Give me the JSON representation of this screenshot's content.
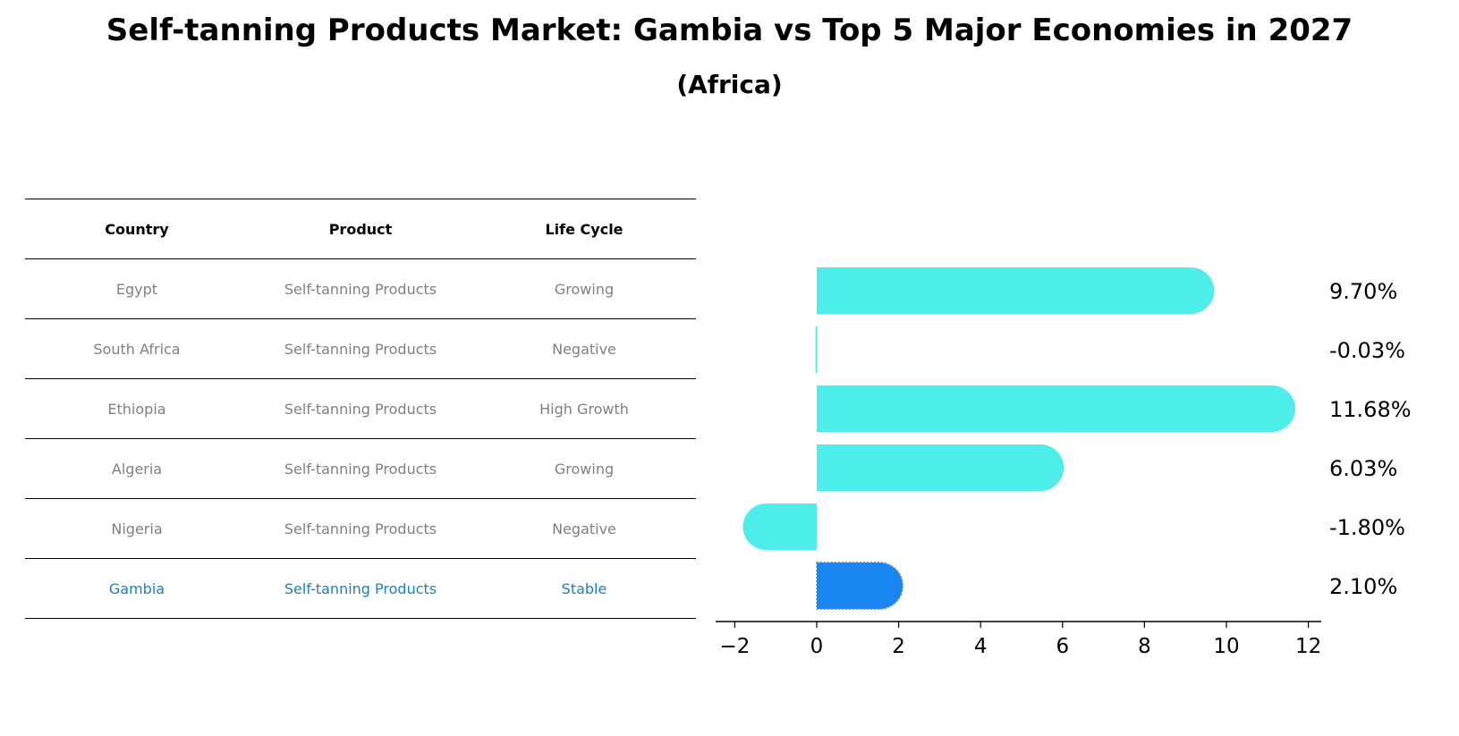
{
  "title": "Self-tanning Products Market: Gambia vs Top 5 Major Economies in 2027",
  "subtitle": "(Africa)",
  "table": {
    "headers": [
      "Country",
      "Product",
      "Life Cycle"
    ],
    "rows": [
      [
        "Egypt",
        "Self-tanning Products",
        "Growing"
      ],
      [
        "South Africa",
        "Self-tanning Products",
        "Negative"
      ],
      [
        "Ethiopia",
        "Self-tanning Products",
        "High Growth"
      ],
      [
        "Algeria",
        "Self-tanning Products",
        "Growing"
      ],
      [
        "Nigeria",
        "Self-tanning Products",
        "Negative"
      ],
      [
        "Gambia",
        "Self-tanning Products",
        "Stable"
      ]
    ]
  },
  "chart_data": {
    "type": "bar",
    "orientation": "horizontal",
    "categories": [
      "Egypt",
      "South Africa",
      "Ethiopia",
      "Algeria",
      "Nigeria",
      "Gambia"
    ],
    "values": [
      9.7,
      -0.03,
      11.68,
      6.03,
      -1.8,
      2.1
    ],
    "value_labels": [
      "9.70%",
      "-0.03%",
      "11.68%",
      "6.03%",
      "-1.80%",
      "2.10%"
    ],
    "highlight": "Gambia",
    "xlim": [
      -2.5,
      12.5
    ],
    "xticks": [
      -2,
      0,
      2,
      4,
      6,
      8,
      10,
      12
    ],
    "xtick_labels": [
      "−2",
      "0",
      "2",
      "4",
      "6",
      "8",
      "10",
      "12"
    ],
    "colors": {
      "default": "#4dedea",
      "highlight": "#1a86f2"
    }
  }
}
